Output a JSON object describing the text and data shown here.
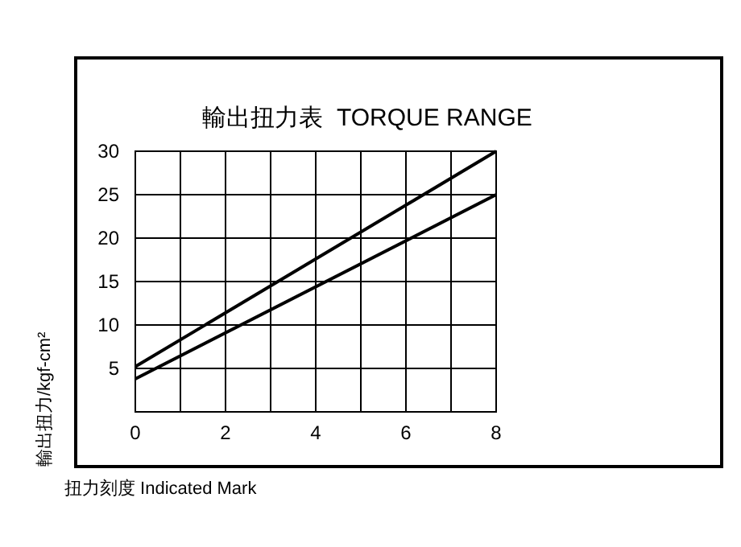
{
  "chart_data": {
    "type": "line",
    "title": "輸出扭力表  TORQUE RANGE",
    "xlabel": "扭力刻度 Indicated Mark",
    "ylabel": "輸出扭力/kgf-cm²",
    "x": [
      0,
      8
    ],
    "series": [
      {
        "color": "#000000",
        "values": [
          5.2,
          30
        ]
      },
      {
        "color": "#000000",
        "values": [
          3.8,
          25
        ]
      }
    ],
    "xlim": [
      0,
      8
    ],
    "ylim": [
      0,
      30
    ],
    "xticks": [
      0,
      {
        "value": 1,
        "label": null
      },
      2,
      {
        "value": 3,
        "label": null
      },
      4,
      {
        "value": 5,
        "label": null
      },
      6,
      {
        "value": 7,
        "label": null
      },
      8
    ],
    "yticks": [
      {
        "value": 0,
        "label": null
      },
      5,
      10,
      15,
      20,
      25,
      30
    ],
    "grid": true,
    "marker": "none",
    "line_style": "solid"
  }
}
